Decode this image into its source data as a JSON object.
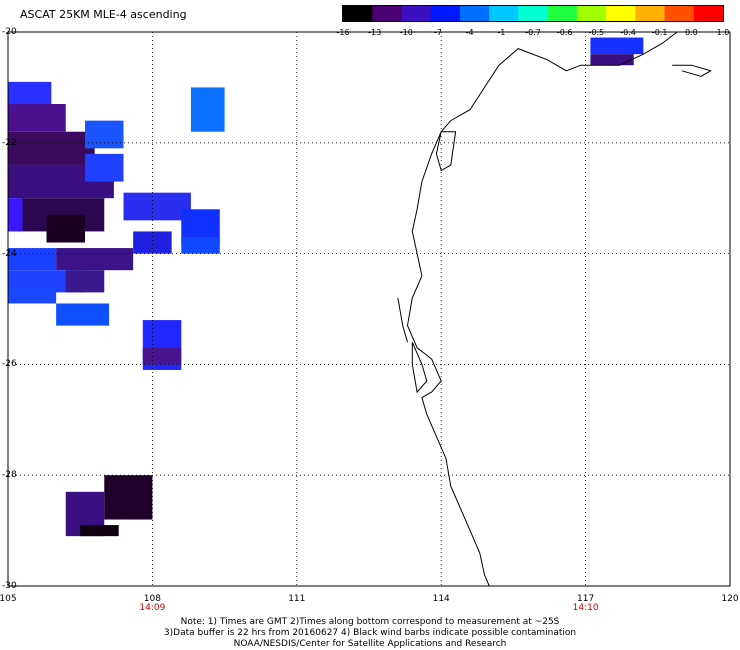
{
  "title": "ASCAT 25KM MLE-4 ascending",
  "colorbar": {
    "labels": [
      "-16",
      "-13",
      "-10",
      "-7",
      "-4",
      "-1",
      "-0.7",
      "-0.6",
      "-0.5",
      "-0.4",
      "-0.1",
      "0.0",
      "1.0"
    ],
    "colors": [
      "#000000",
      "#4a0070",
      "#3a10c0",
      "#0018ff",
      "#0070ff",
      "#00c8ff",
      "#00ffd0",
      "#20ff40",
      "#a0ff00",
      "#ffff00",
      "#ffb000",
      "#ff5000",
      "#ff0000"
    ]
  },
  "map": {
    "lon_range": [
      105,
      120
    ],
    "lat_range": [
      -30,
      -20
    ],
    "lon_ticks": [
      "105",
      "108",
      "111",
      "114",
      "117",
      "120"
    ],
    "lat_ticks": [
      "-20",
      "-22",
      "-24",
      "-26",
      "-28",
      "-30"
    ],
    "time_labels": [
      {
        "lon": 108,
        "text": "14:09"
      },
      {
        "lon": 117,
        "text": "14:10"
      }
    ],
    "pixels": [
      {
        "lon": 105.0,
        "lat": -20.9,
        "w": 0.9,
        "h": 0.4,
        "c": "#2a30ff"
      },
      {
        "lon": 105.0,
        "lat": -21.3,
        "w": 1.2,
        "h": 0.5,
        "c": "#4a1090"
      },
      {
        "lon": 105.0,
        "lat": -21.8,
        "w": 1.8,
        "h": 0.6,
        "c": "#3b0a60"
      },
      {
        "lon": 105.0,
        "lat": -22.4,
        "w": 2.2,
        "h": 0.6,
        "c": "#3a1080"
      },
      {
        "lon": 105.2,
        "lat": -23.0,
        "w": 1.8,
        "h": 0.6,
        "c": "#2a0850"
      },
      {
        "lon": 105.8,
        "lat": -23.3,
        "w": 0.8,
        "h": 0.5,
        "c": "#1a0020"
      },
      {
        "lon": 105.0,
        "lat": -23.0,
        "w": 0.3,
        "h": 0.6,
        "c": "#3a18ff"
      },
      {
        "lon": 106.6,
        "lat": -22.2,
        "w": 0.8,
        "h": 0.5,
        "c": "#2040ff"
      },
      {
        "lon": 106.6,
        "lat": -21.6,
        "w": 0.8,
        "h": 0.5,
        "c": "#1a55ff"
      },
      {
        "lon": 107.4,
        "lat": -22.9,
        "w": 1.4,
        "h": 0.5,
        "c": "#2a2ef0"
      },
      {
        "lon": 108.6,
        "lat": -23.2,
        "w": 0.8,
        "h": 0.6,
        "c": "#1030ff"
      },
      {
        "lon": 106.0,
        "lat": -23.9,
        "w": 1.6,
        "h": 0.4,
        "c": "#3a1488"
      },
      {
        "lon": 105.0,
        "lat": -23.9,
        "w": 1.0,
        "h": 0.4,
        "c": "#1a40ff"
      },
      {
        "lon": 107.6,
        "lat": -23.6,
        "w": 0.8,
        "h": 0.4,
        "c": "#2020e0"
      },
      {
        "lon": 108.6,
        "lat": -23.7,
        "w": 0.8,
        "h": 0.3,
        "c": "#1048ff"
      },
      {
        "lon": 105.0,
        "lat": -24.3,
        "w": 1.6,
        "h": 0.4,
        "c": "#2040ff"
      },
      {
        "lon": 106.2,
        "lat": -24.3,
        "w": 0.8,
        "h": 0.4,
        "c": "#3a1890"
      },
      {
        "lon": 105.0,
        "lat": -24.6,
        "w": 1.0,
        "h": 0.3,
        "c": "#1a48ff"
      },
      {
        "lon": 106.0,
        "lat": -24.9,
        "w": 1.1,
        "h": 0.4,
        "c": "#1050ff"
      },
      {
        "lon": 108.8,
        "lat": -21.0,
        "w": 0.7,
        "h": 0.8,
        "c": "#0a70ff"
      },
      {
        "lon": 107.8,
        "lat": -25.2,
        "w": 0.8,
        "h": 0.9,
        "c": "#2028ff"
      },
      {
        "lon": 107.8,
        "lat": -25.7,
        "w": 0.8,
        "h": 0.3,
        "c": "#4a1490"
      },
      {
        "lon": 107.0,
        "lat": -28.0,
        "w": 1.0,
        "h": 0.8,
        "c": "#20002a"
      },
      {
        "lon": 106.2,
        "lat": -28.3,
        "w": 0.8,
        "h": 0.8,
        "c": "#3a1080"
      },
      {
        "lon": 106.5,
        "lat": -28.9,
        "w": 0.8,
        "h": 0.2,
        "c": "#100010"
      },
      {
        "lon": 117.1,
        "lat": -20.1,
        "w": 1.1,
        "h": 0.3,
        "c": "#1830ff"
      },
      {
        "lon": 117.1,
        "lat": -20.4,
        "w": 0.9,
        "h": 0.2,
        "c": "#3a1080"
      }
    ],
    "coastline": [
      [
        [
          115.2,
          -20.6
        ],
        [
          114.9,
          -21.0
        ],
        [
          114.6,
          -21.4
        ],
        [
          114.2,
          -21.6
        ],
        [
          114.0,
          -21.8
        ],
        [
          113.8,
          -22.2
        ],
        [
          113.6,
          -22.7
        ],
        [
          113.5,
          -23.2
        ],
        [
          113.4,
          -23.6
        ],
        [
          113.5,
          -24.0
        ],
        [
          113.6,
          -24.4
        ],
        [
          113.4,
          -24.8
        ],
        [
          113.3,
          -25.3
        ],
        [
          113.5,
          -25.7
        ],
        [
          113.8,
          -25.9
        ],
        [
          114.0,
          -26.3
        ],
        [
          113.8,
          -26.5
        ],
        [
          113.6,
          -26.6
        ],
        [
          113.7,
          -26.9
        ],
        [
          113.9,
          -27.3
        ],
        [
          114.1,
          -27.7
        ],
        [
          114.2,
          -28.2
        ],
        [
          114.4,
          -28.6
        ],
        [
          114.6,
          -29.0
        ],
        [
          114.8,
          -29.4
        ],
        [
          114.9,
          -29.8
        ],
        [
          115.0,
          -30.0
        ]
      ],
      [
        [
          115.2,
          -20.6
        ],
        [
          115.6,
          -20.3
        ],
        [
          116.2,
          -20.5
        ],
        [
          116.6,
          -20.7
        ],
        [
          116.9,
          -20.6
        ],
        [
          117.3,
          -20.6
        ],
        [
          117.7,
          -20.6
        ],
        [
          118.2,
          -20.4
        ],
        [
          118.6,
          -20.2
        ],
        [
          118.9,
          -20.0
        ]
      ],
      [
        [
          114.0,
          -21.8
        ],
        [
          114.3,
          -21.8
        ],
        [
          114.2,
          -22.4
        ],
        [
          114.0,
          -22.5
        ],
        [
          113.9,
          -22.2
        ],
        [
          114.0,
          -21.8
        ]
      ],
      [
        [
          113.1,
          -24.8
        ],
        [
          113.2,
          -25.3
        ],
        [
          113.3,
          -25.6
        ]
      ],
      [
        [
          113.4,
          -25.6
        ],
        [
          113.6,
          -26.0
        ],
        [
          113.7,
          -26.3
        ],
        [
          113.5,
          -26.5
        ],
        [
          113.4,
          -26.0
        ],
        [
          113.4,
          -25.6
        ]
      ],
      [
        [
          118.8,
          -20.6
        ],
        [
          119.2,
          -20.6
        ],
        [
          119.6,
          -20.7
        ],
        [
          119.4,
          -20.8
        ],
        [
          119.0,
          -20.7
        ]
      ]
    ]
  },
  "notes": {
    "line1": "Note: 1) Times are GMT 2)Times along bottom correspond to measurement at ~25S",
    "line2": "3)Data buffer is 22 hrs from 20160627 4) Black wind barbs indicate possible contamination",
    "line3": "NOAA/NESDIS/Center for Satellite Applications and Research"
  }
}
